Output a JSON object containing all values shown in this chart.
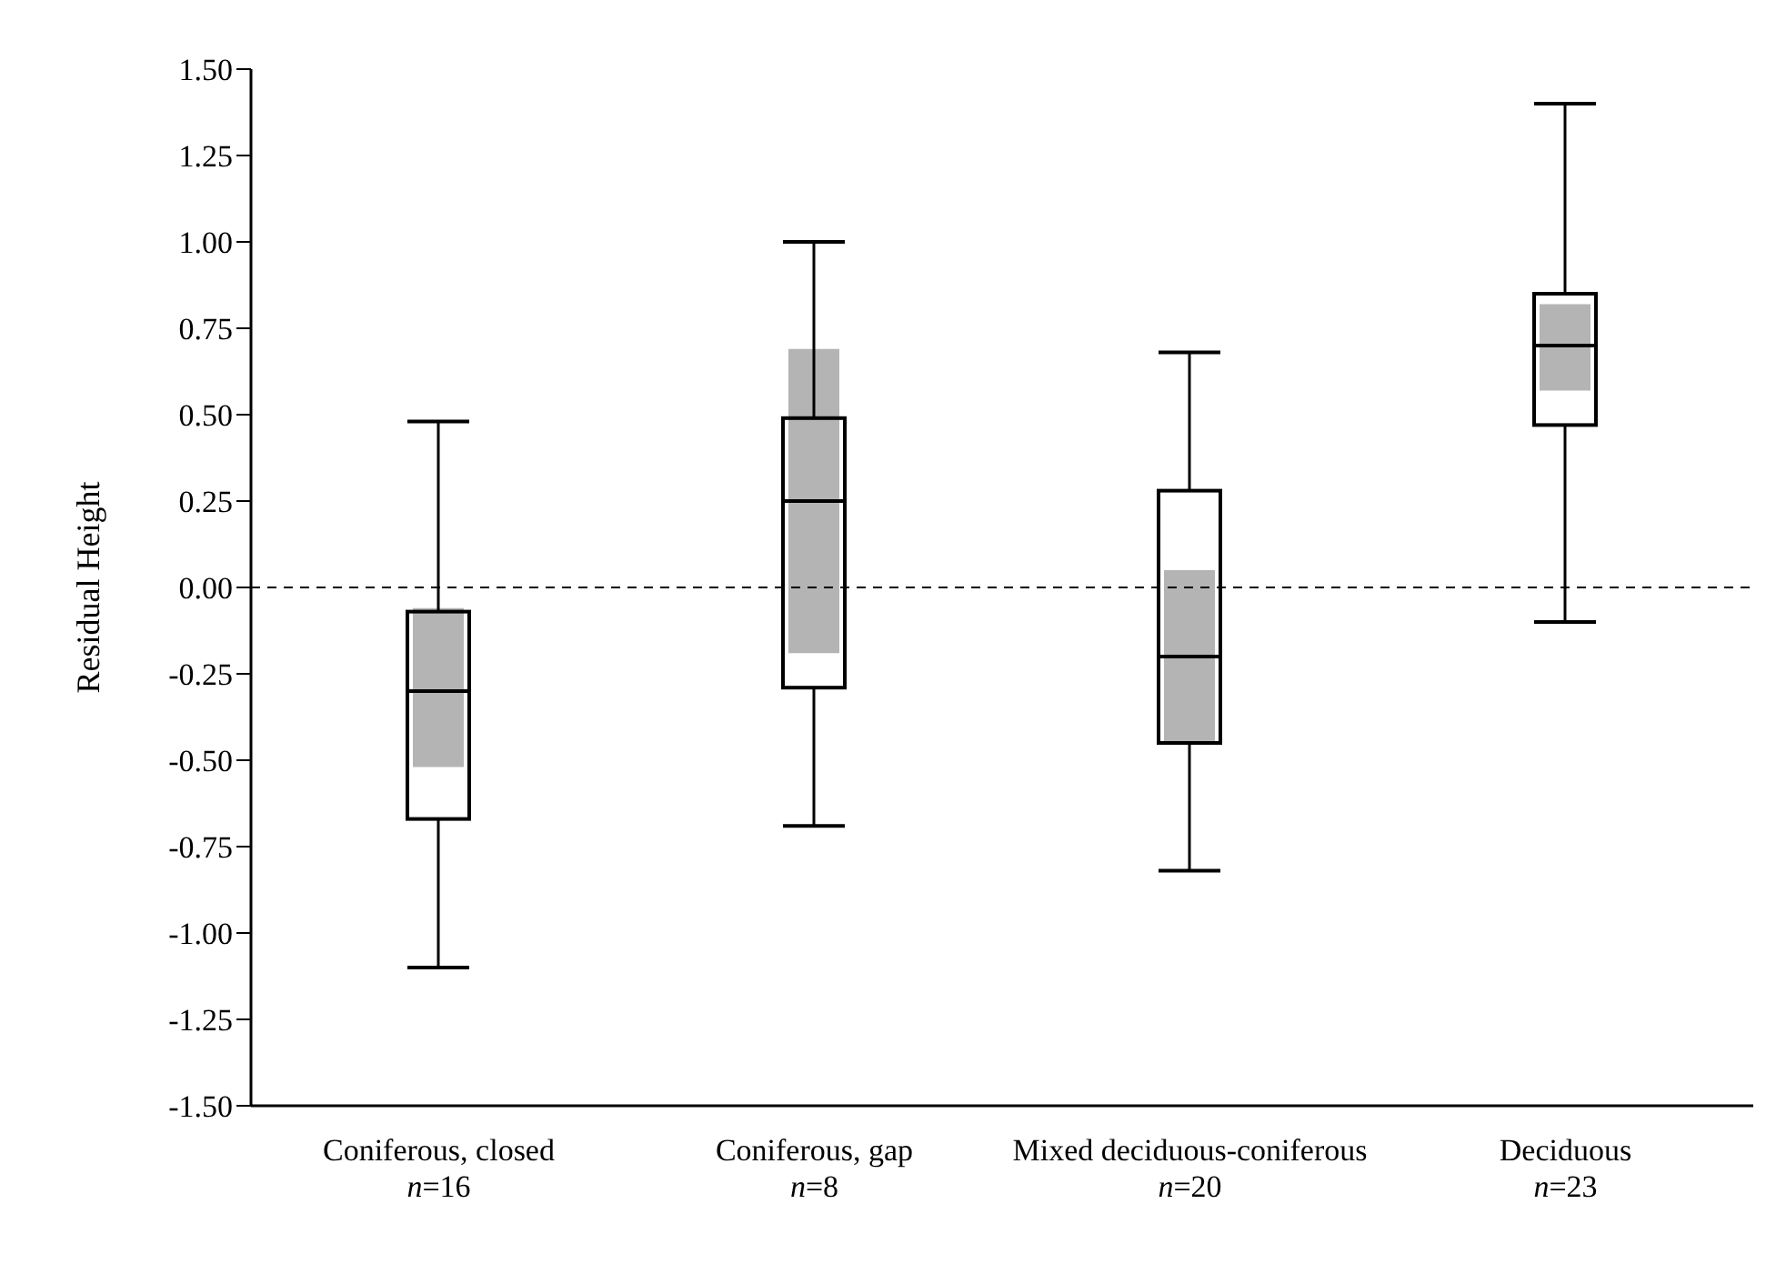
{
  "chart_data": {
    "type": "box",
    "categories": [
      "Coniferous, closed\nn=16",
      "Coniferous, gap\nn=8",
      "Mixed deciduous-coniferous\nn=20",
      "Deciduous\nn=23"
    ],
    "ylabel": "Residual Height",
    "ylim": [
      -1.5,
      1.5
    ],
    "yticks": [
      {
        "value": -1.5,
        "label": "-1.50"
      },
      {
        "value": -1.25,
        "label": "-1.25"
      },
      {
        "value": -1,
        "label": "-1.00"
      },
      {
        "value": -0.75,
        "label": "-0.75"
      },
      {
        "value": -0.5,
        "label": "-0.50"
      },
      {
        "value": -0.25,
        "label": "-0.25"
      },
      {
        "value": 0,
        "label": "0.00"
      },
      {
        "value": 0.25,
        "label": "0.25"
      },
      {
        "value": 0.5,
        "label": "0.50"
      },
      {
        "value": 0.75,
        "label": "0.75"
      },
      {
        "value": 1,
        "label": "1.00"
      },
      {
        "value": 1.25,
        "label": "1.25"
      },
      {
        "value": 1.5,
        "label": "1.50"
      }
    ],
    "boxes": [
      {
        "low": -1.1,
        "q1": -0.67,
        "median": -0.3,
        "q3": -0.07,
        "high": 0.48
      },
      {
        "low": -0.69,
        "q1": -0.29,
        "median": 0.25,
        "q3": 0.49,
        "high": 1.0
      },
      {
        "low": -0.82,
        "q1": -0.45,
        "median": -0.2,
        "q3": 0.28,
        "high": 0.68
      },
      {
        "low": -0.1,
        "q1": 0.47,
        "median": 0.7,
        "q3": 0.85,
        "high": 1.4
      }
    ],
    "series": [
      {
        "type": "bar",
        "color": "#b4b4b4",
        "base": [
          -0.52,
          -0.19,
          -0.45,
          0.57
        ],
        "values": [
          0.46,
          0.88,
          0.5,
          0.25
        ]
      }
    ],
    "ref_lines": [
      {
        "axis": "y",
        "value": 0,
        "line_style": "dashed",
        "color": "#000000"
      }
    ]
  }
}
